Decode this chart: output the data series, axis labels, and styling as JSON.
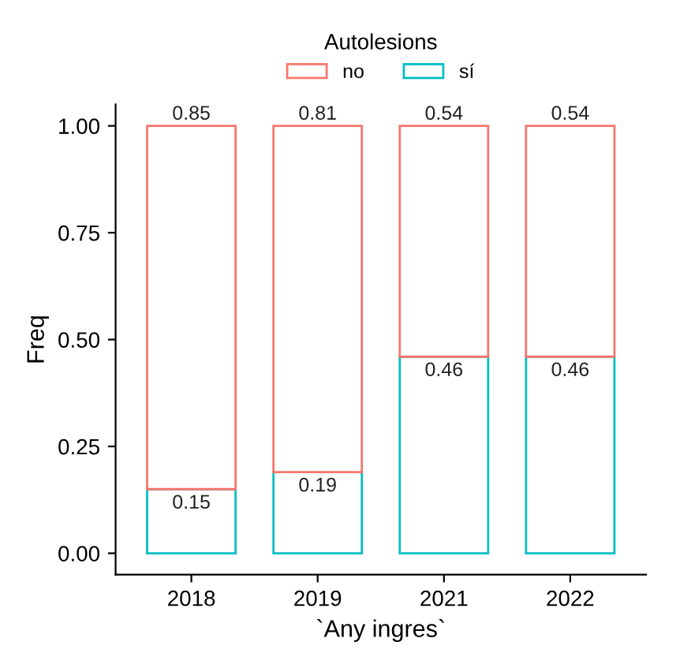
{
  "chart_data": {
    "type": "bar",
    "stacked": true,
    "xlabel": "`Any ingres`",
    "ylabel": "Freq",
    "legend_title": "Autolesions",
    "legend": "top",
    "data_labels": true,
    "categories": [
      "2018",
      "2019",
      "2021",
      "2022"
    ],
    "series": [
      {
        "name": "sí",
        "color": "#00bfc4",
        "values": [
          0.15,
          0.19,
          0.46,
          0.46
        ]
      },
      {
        "name": "no",
        "color": "#f8766d",
        "values": [
          0.85,
          0.81,
          0.54,
          0.54
        ]
      }
    ],
    "ylim": [
      -0.05,
      1.05
    ],
    "yticks": [
      {
        "value": 0,
        "label": "0.00"
      },
      {
        "value": 0.25,
        "label": "0.25"
      },
      {
        "value": 0.5,
        "label": "0.50"
      },
      {
        "value": 0.75,
        "label": "0.75"
      },
      {
        "value": 1,
        "label": "1.00"
      }
    ],
    "grid": false
  }
}
